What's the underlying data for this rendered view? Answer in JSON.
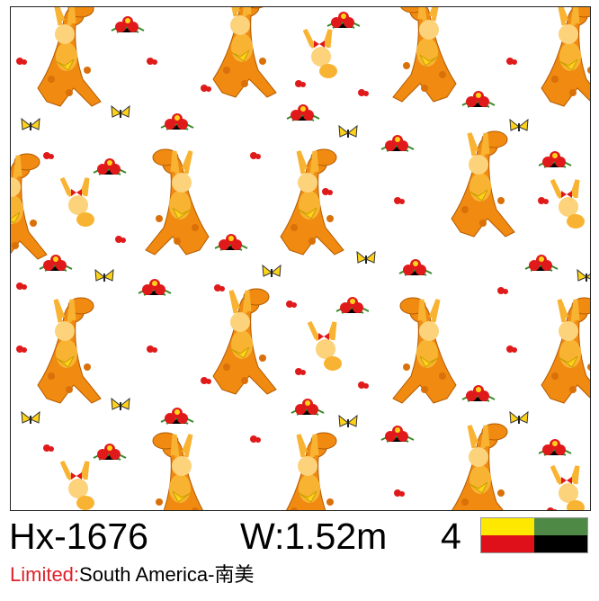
{
  "product": {
    "code": "Hx-1676",
    "width": "W:1.52m",
    "color_count": "4",
    "colors": [
      "#ffe800",
      "#4e8a46",
      "#e0101a",
      "#000000"
    ],
    "limited_label": "Limited:",
    "limited_value": "South America-南美"
  },
  "pattern": {
    "motifs": [
      "giraffe-with-rabbit",
      "rabbit",
      "red-flower-cluster",
      "yellow-butterfly"
    ],
    "palette": {
      "orange": "#f08a10",
      "light_orange": "#f9b332",
      "yellow": "#ffd21a",
      "red": "#e01a1a",
      "green": "#3a8a2a"
    }
  }
}
